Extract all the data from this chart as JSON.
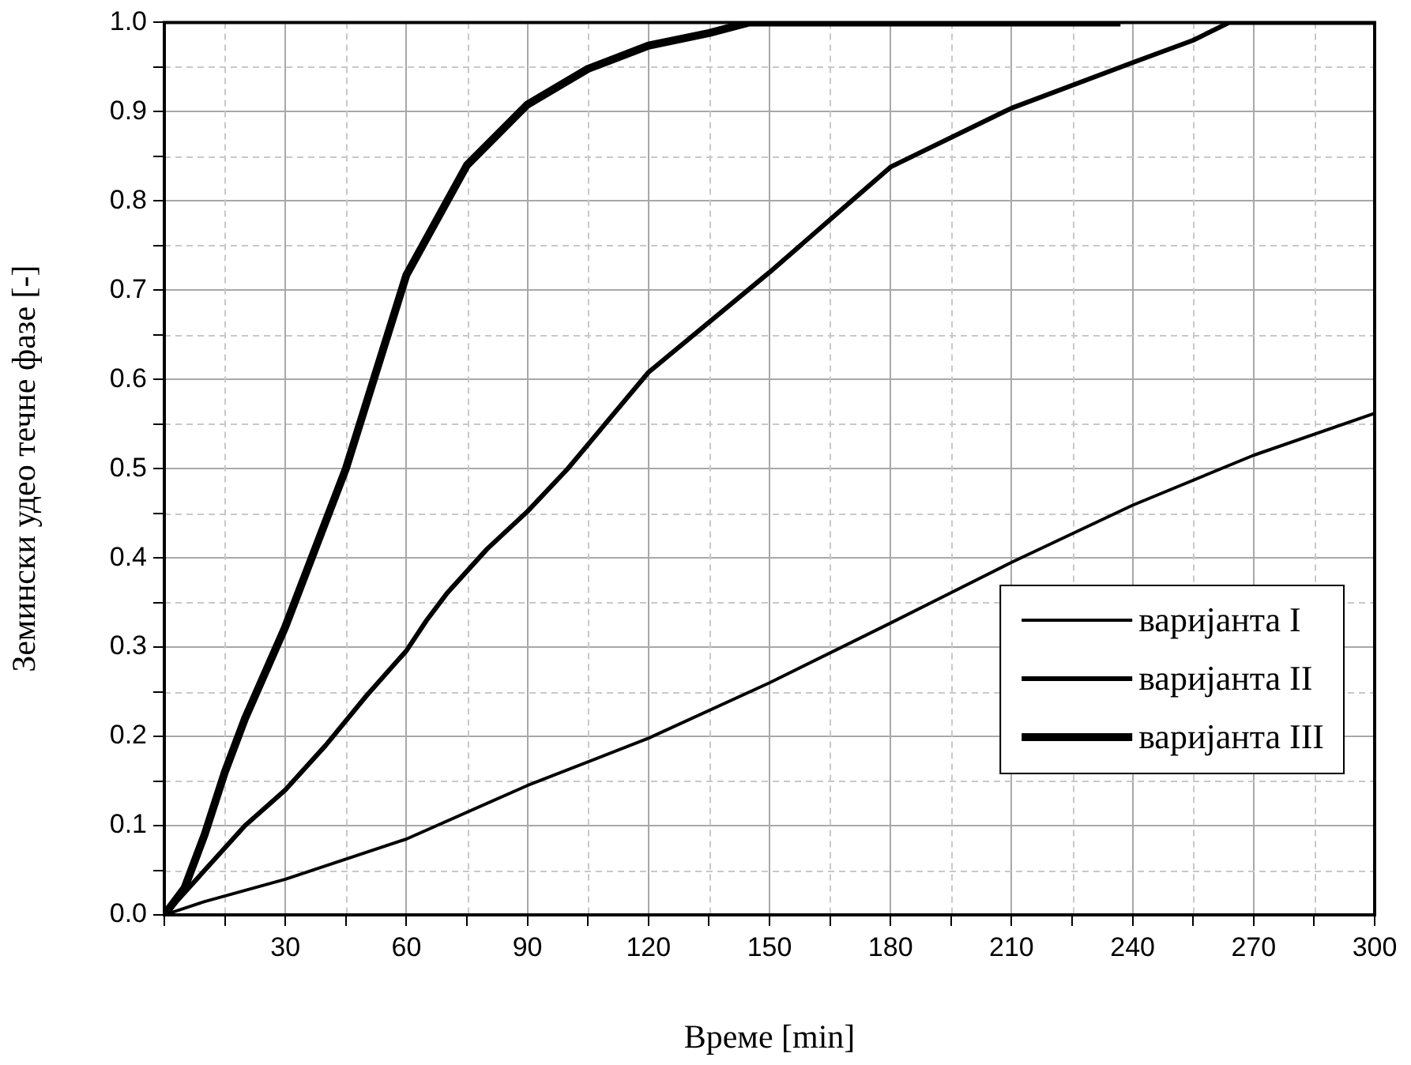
{
  "chart_data": {
    "type": "line",
    "xlabel": "Време [min]",
    "ylabel": "Земински удео течне фазе [-]",
    "xlim": [
      0,
      300
    ],
    "xticks": [
      {
        "value": 0,
        "label": null
      },
      {
        "value": 15,
        "label": null
      },
      30,
      {
        "value": 45,
        "label": null
      },
      60,
      {
        "value": 75,
        "label": null
      },
      90,
      {
        "value": 105,
        "label": null
      },
      120,
      {
        "value": 135,
        "label": null
      },
      150,
      {
        "value": 165,
        "label": null
      },
      180,
      {
        "value": 195,
        "label": null
      },
      210,
      {
        "value": 225,
        "label": null
      },
      240,
      {
        "value": 255,
        "label": null
      },
      270,
      {
        "value": 285,
        "label": null
      },
      300
    ],
    "ylim": [
      0,
      1
    ],
    "yticks": [
      {
        "value": 0,
        "label": "0.0"
      },
      {
        "value": 0.05,
        "label": null
      },
      0.1,
      {
        "value": 0.15,
        "label": null
      },
      0.2,
      {
        "value": 0.25,
        "label": null
      },
      0.3,
      {
        "value": 0.35,
        "label": null
      },
      0.4,
      {
        "value": 0.45,
        "label": null
      },
      0.5,
      {
        "value": 0.55,
        "label": null
      },
      0.6,
      {
        "value": 0.65,
        "label": null
      },
      0.7,
      {
        "value": 0.75,
        "label": null
      },
      0.8,
      {
        "value": 0.85,
        "label": null
      },
      0.9,
      {
        "value": 0.95,
        "label": null
      },
      {
        "value": 1,
        "label": "1.0"
      }
    ],
    "grid": true,
    "legend": "bottom right",
    "marker": "none",
    "line_style": "solid",
    "series": [
      {
        "name": "варијанта I",
        "color": "#000000",
        "x": [
          0,
          10,
          30,
          60,
          90,
          120,
          150,
          180,
          210,
          240,
          270,
          300
        ],
        "values": [
          0,
          0.015,
          0.04,
          0.085,
          0.145,
          0.198,
          0.26,
          0.327,
          0.395,
          0.459,
          0.515,
          0.562
        ]
      },
      {
        "name": "варијанта II",
        "color": "#000000",
        "x": [
          0,
          10,
          20,
          30,
          40,
          50,
          60,
          65,
          70,
          80,
          90,
          100,
          120,
          150,
          180,
          210,
          240,
          255,
          264,
          300
        ],
        "values": [
          0,
          0.05,
          0.1,
          0.14,
          0.19,
          0.245,
          0.296,
          0.33,
          0.36,
          0.41,
          0.452,
          0.5,
          0.608,
          0.72,
          0.838,
          0.904,
          0.955,
          0.98,
          1,
          1
        ]
      },
      {
        "name": "варијанта III",
        "color": "#000000",
        "x": [
          0,
          5,
          10,
          15,
          20,
          30,
          45,
          60,
          75,
          90,
          105,
          120,
          135,
          145,
          237
        ],
        "values": [
          0,
          0.03,
          0.09,
          0.16,
          0.22,
          0.323,
          0.5,
          0.717,
          0.84,
          0.908,
          0.948,
          0.974,
          0.988,
          1,
          1
        ]
      }
    ]
  }
}
